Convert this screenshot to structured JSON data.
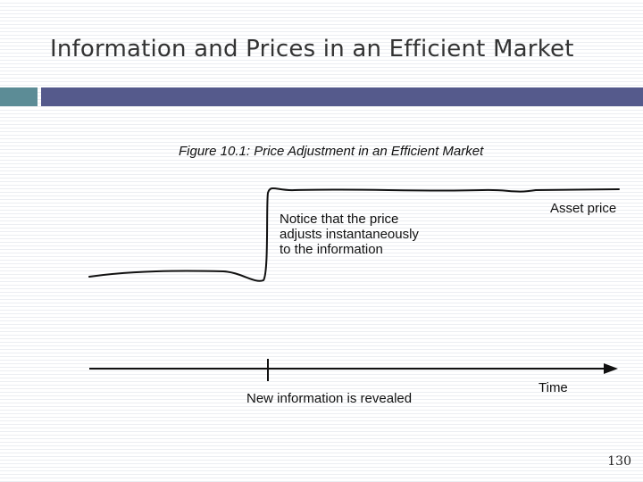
{
  "slide": {
    "title": "Information and Prices in an Efficient Market",
    "page_number": "130",
    "accent_colors": {
      "left_bar": "#5c8c96",
      "right_bar": "#555a8c"
    }
  },
  "figure": {
    "caption": "Figure 10.1: Price Adjustment in an Efficient Market",
    "notice_lines": [
      "Notice that the price",
      "adjusts instantaneously",
      "to the information"
    ],
    "asset_price_label": "Asset price",
    "event_label": "New information is revealed",
    "time_axis_label": "Time"
  }
}
